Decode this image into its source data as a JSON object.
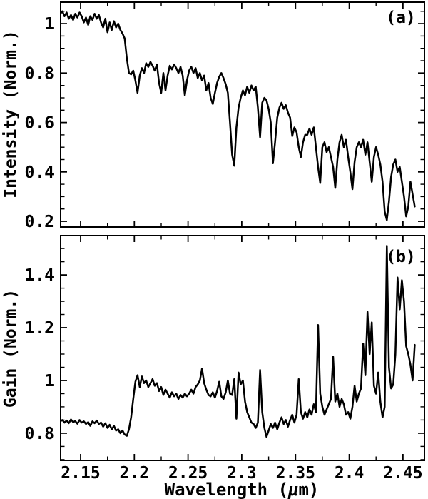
{
  "figure": {
    "background": "#ffffff",
    "line_color": "#000000",
    "x_axis_title": {
      "prefix": "Wavelength (",
      "mu": "μ",
      "suffix": "m)",
      "full": "Wavelength (μm)"
    },
    "panels": [
      {
        "id": "a",
        "corner_label": "(a)",
        "y_axis_title": "Intensity (Norm.)"
      },
      {
        "id": "b",
        "corner_label": "(b)",
        "y_axis_title": "Gain (Norm.)"
      }
    ]
  },
  "chart_data": [
    {
      "type": "line",
      "panel": "a",
      "title": "",
      "annotation": "(a)",
      "xlabel": "Wavelength (μm)",
      "ylabel": "Intensity (Norm.)",
      "grid": false,
      "xlim": [
        2.1314,
        2.47
      ],
      "ylim": [
        0.177,
        1.087
      ],
      "x_major_ticks": [
        2.15,
        2.2,
        2.25,
        2.3,
        2.35,
        2.4,
        2.45
      ],
      "x_tick_labels": [
        "2.15",
        "2.2",
        "2.25",
        "2.3",
        "2.35",
        "2.4",
        "2.45"
      ],
      "x_minor_ticks": [
        2.175,
        2.225,
        2.275,
        2.325,
        2.375,
        2.425
      ],
      "y_major_ticks": [
        0.2,
        0.4,
        0.6,
        0.8,
        1
      ],
      "y_tick_labels": [
        "0.2",
        "0.4",
        "0.6",
        "0.8",
        "1"
      ],
      "y_minor_ticks": [
        0.25,
        0.3,
        0.35,
        0.45,
        0.5,
        0.55,
        0.65,
        0.7,
        0.75,
        0.85,
        0.9,
        0.95,
        1.05
      ],
      "x_start": 2.131,
      "x_step": 0.002,
      "values": [
        1.04,
        1.05,
        1.03,
        1.045,
        1.02,
        1.035,
        1.015,
        1.04,
        1.025,
        1.045,
        1.03,
        1.005,
        1.025,
        0.995,
        1.03,
        1.015,
        1.04,
        1.02,
        1.035,
        1.005,
        0.985,
        1.02,
        0.965,
        1.005,
        0.975,
        1.01,
        0.985,
        1.0,
        0.975,
        0.96,
        0.94,
        0.86,
        0.8,
        0.795,
        0.81,
        0.77,
        0.72,
        0.79,
        0.82,
        0.8,
        0.84,
        0.825,
        0.845,
        0.83,
        0.81,
        0.835,
        0.76,
        0.72,
        0.8,
        0.73,
        0.79,
        0.83,
        0.815,
        0.835,
        0.82,
        0.8,
        0.825,
        0.79,
        0.71,
        0.77,
        0.81,
        0.825,
        0.8,
        0.82,
        0.78,
        0.8,
        0.77,
        0.79,
        0.73,
        0.76,
        0.7,
        0.675,
        0.72,
        0.76,
        0.785,
        0.8,
        0.78,
        0.755,
        0.72,
        0.6,
        0.47,
        0.425,
        0.58,
        0.66,
        0.7,
        0.73,
        0.71,
        0.745,
        0.72,
        0.75,
        0.73,
        0.745,
        0.66,
        0.54,
        0.68,
        0.7,
        0.69,
        0.655,
        0.6,
        0.435,
        0.52,
        0.62,
        0.66,
        0.68,
        0.655,
        0.67,
        0.64,
        0.62,
        0.545,
        0.58,
        0.56,
        0.5,
        0.46,
        0.52,
        0.55,
        0.55,
        0.575,
        0.55,
        0.58,
        0.5,
        0.42,
        0.355,
        0.5,
        0.52,
        0.48,
        0.5,
        0.46,
        0.42,
        0.335,
        0.45,
        0.52,
        0.55,
        0.5,
        0.53,
        0.46,
        0.4,
        0.33,
        0.44,
        0.5,
        0.52,
        0.5,
        0.53,
        0.47,
        0.52,
        0.44,
        0.36,
        0.46,
        0.5,
        0.47,
        0.43,
        0.36,
        0.24,
        0.205,
        0.28,
        0.38,
        0.43,
        0.45,
        0.4,
        0.42,
        0.36,
        0.3,
        0.22,
        0.26,
        0.36,
        0.31,
        0.26
      ]
    },
    {
      "type": "line",
      "panel": "b",
      "title": "",
      "annotation": "(b)",
      "xlabel": "Wavelength (μm)",
      "ylabel": "Gain (Norm.)",
      "grid": false,
      "xlim": [
        2.1314,
        2.47
      ],
      "ylim": [
        0.697,
        1.549
      ],
      "x_major_ticks": [
        2.15,
        2.2,
        2.25,
        2.3,
        2.35,
        2.4,
        2.45
      ],
      "x_tick_labels": [
        "2.15",
        "2.2",
        "2.25",
        "2.3",
        "2.35",
        "2.4",
        "2.45"
      ],
      "x_minor_ticks": [
        2.175,
        2.225,
        2.275,
        2.325,
        2.375,
        2.425
      ],
      "y_major_ticks": [
        0.8,
        1,
        1.2,
        1.4
      ],
      "y_tick_labels": [
        "0.8",
        "1",
        "1.2",
        "1.4"
      ],
      "y_minor_ticks": [
        0.7,
        0.75,
        0.85,
        0.9,
        0.95,
        1.05,
        1.1,
        1.15,
        1.25,
        1.3,
        1.35,
        1.45,
        1.5
      ],
      "x_start": 2.131,
      "x_step": 0.002,
      "values": [
        0.845,
        0.85,
        0.84,
        0.848,
        0.838,
        0.852,
        0.842,
        0.846,
        0.836,
        0.85,
        0.84,
        0.845,
        0.835,
        0.842,
        0.828,
        0.845,
        0.838,
        0.848,
        0.835,
        0.84,
        0.825,
        0.838,
        0.82,
        0.832,
        0.815,
        0.828,
        0.81,
        0.815,
        0.8,
        0.81,
        0.795,
        0.79,
        0.815,
        0.86,
        0.93,
        0.995,
        1.02,
        0.975,
        1.015,
        0.99,
        1.0,
        0.975,
        0.99,
        1.005,
        0.98,
        0.99,
        0.96,
        0.975,
        0.945,
        0.965,
        0.95,
        0.935,
        0.955,
        0.94,
        0.95,
        0.93,
        0.945,
        0.935,
        0.95,
        0.94,
        0.95,
        0.965,
        0.95,
        0.975,
        0.985,
        1.0,
        1.045,
        0.99,
        0.965,
        0.945,
        0.94,
        0.955,
        0.935,
        0.96,
        0.995,
        0.94,
        0.93,
        0.955,
        1.0,
        0.95,
        0.945,
        1.005,
        0.855,
        1.03,
        0.985,
        1.0,
        0.92,
        0.88,
        0.86,
        0.84,
        0.835,
        0.82,
        0.84,
        1.04,
        0.88,
        0.82,
        0.786,
        0.81,
        0.835,
        0.82,
        0.84,
        0.815,
        0.84,
        0.86,
        0.835,
        0.85,
        0.825,
        0.85,
        0.87,
        0.84,
        0.87,
        1.005,
        0.88,
        0.855,
        0.88,
        0.86,
        0.89,
        0.87,
        0.91,
        0.88,
        1.21,
        0.95,
        0.9,
        0.87,
        0.89,
        0.91,
        0.93,
        1.09,
        0.92,
        0.95,
        0.9,
        0.93,
        0.91,
        0.87,
        0.88,
        0.855,
        0.9,
        0.98,
        0.92,
        0.95,
        0.97,
        1.14,
        1.02,
        1.26,
        1.1,
        1.22,
        0.98,
        0.95,
        1.03,
        0.92,
        0.86,
        0.9,
        1.51,
        1.05,
        0.97,
        0.985,
        1.1,
        1.39,
        1.27,
        1.38,
        1.3,
        1.13,
        1.1,
        1.06,
        1.0,
        1.135
      ]
    }
  ]
}
